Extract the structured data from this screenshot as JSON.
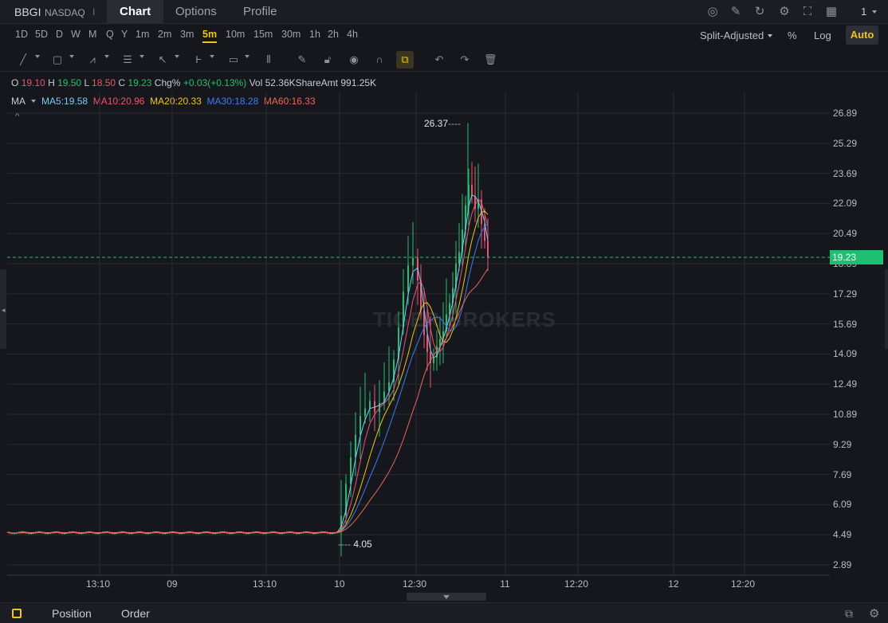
{
  "header": {
    "symbol": "BBGI",
    "exchange": "NASDAQ",
    "separator": "I",
    "tabs": [
      {
        "label": "Chart"
      },
      {
        "label": "Options"
      },
      {
        "label": "Profile"
      }
    ],
    "window_count": "1",
    "icons": [
      "camera-icon",
      "pencil-icon",
      "refresh-icon",
      "gear-icon",
      "fullscreen-icon",
      "layout-grid-icon"
    ]
  },
  "periods": [
    "1D",
    "5D",
    "D",
    "W",
    "M",
    "Q",
    "Y",
    "1m",
    "2m",
    "3m",
    "5m",
    "10m",
    "15m",
    "30m",
    "1h",
    "2h",
    "4h"
  ],
  "selected_period": "5m",
  "right_options": {
    "adjust": "Split-Adjusted",
    "percent": "%",
    "log": "Log",
    "auto": "Auto"
  },
  "ohlc": {
    "o_label": "O",
    "o": "19.10",
    "h_label": "H",
    "h": "19.50",
    "l_label": "L",
    "l": "18.50",
    "c_label": "C",
    "c": "19.23",
    "chg_label": "Chg%",
    "chg": "+0.03(+0.13%)",
    "vol_label": "Vol",
    "vol": "52.36KShare",
    "amt_label": "Amt",
    "amt": "991.25K"
  },
  "ma": {
    "label": "MA",
    "items": [
      {
        "text": "MA5:19.58",
        "color": "#7fc8f8"
      },
      {
        "text": "MA10:20.96",
        "color": "#e8556f"
      },
      {
        "text": "MA20:20.33",
        "color": "#f3c316"
      },
      {
        "text": "MA30:18.28",
        "color": "#3f7bef"
      },
      {
        "text": "MA60:16.33",
        "color": "#e8675a"
      }
    ]
  },
  "colors": {
    "up": "#1fbf73",
    "down": "#e8556f",
    "accent": "#f3c316",
    "current": "#1fbf73"
  },
  "chart_data": {
    "type": "line",
    "y_ticks": [
      "26.89",
      "25.29",
      "23.69",
      "22.09",
      "20.49",
      "18.89",
      "17.29",
      "15.69",
      "14.09",
      "12.49",
      "10.89",
      "9.29",
      "7.69",
      "6.09",
      "4.49",
      "2.89"
    ],
    "x_ticks": [
      "13:10",
      "09",
      "13:10",
      "10",
      "12:30",
      "11",
      "12:20",
      "12",
      "12:20"
    ],
    "ylim": [
      2.89,
      26.89
    ],
    "high_marker": "26.37",
    "low_marker": "4.05",
    "current_price": "19.23",
    "grid": true
  },
  "bottom": {
    "tabs": [
      "Position",
      "Order"
    ]
  },
  "watermark": "TIGER BROKERS"
}
